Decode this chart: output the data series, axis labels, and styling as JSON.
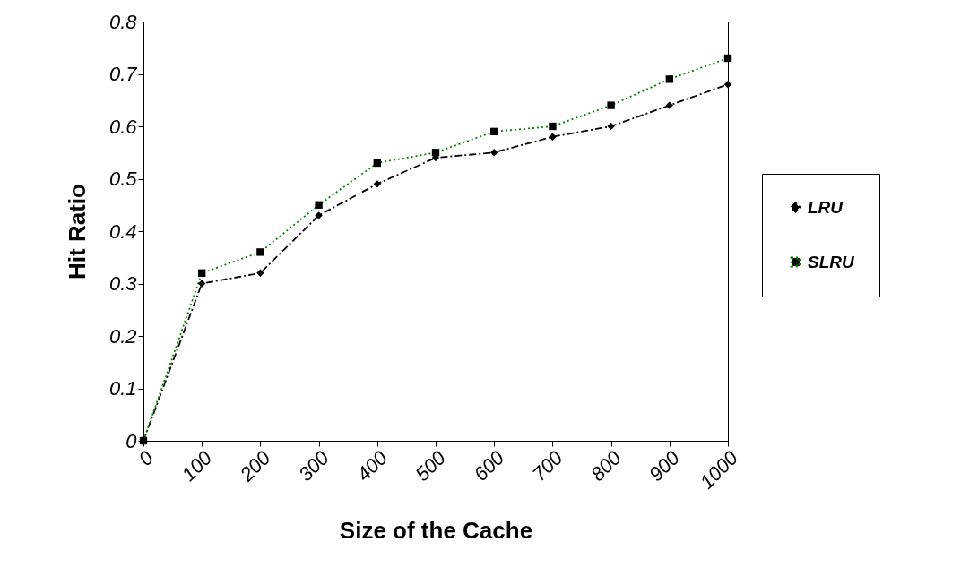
{
  "chart_data": {
    "type": "line",
    "xlabel": "Size of the Cache",
    "ylabel": "Hit Ratio",
    "x": [
      0,
      100,
      200,
      300,
      400,
      500,
      600,
      700,
      800,
      900,
      1000
    ],
    "xlim": [
      0,
      1000
    ],
    "xticks": [
      0,
      100,
      200,
      300,
      400,
      500,
      600,
      700,
      800,
      900,
      1000
    ],
    "ylim": [
      0,
      0.8
    ],
    "yticks": [
      0,
      0.1,
      0.2,
      0.3,
      0.4,
      0.5,
      0.6,
      0.7,
      0.8
    ],
    "grid": false,
    "legend": "right",
    "series": [
      {
        "name": "LRU",
        "color": "#000000",
        "marker": "diamond",
        "line_style": "dashed",
        "values": [
          0,
          0.3,
          0.32,
          0.43,
          0.49,
          0.54,
          0.55,
          0.58,
          0.6,
          0.64,
          0.68
        ]
      },
      {
        "name": "SLRU",
        "color": "#008000",
        "marker": "square",
        "line_style": "dotted",
        "values": [
          0,
          0.32,
          0.36,
          0.45,
          0.53,
          0.55,
          0.59,
          0.6,
          0.64,
          0.69,
          0.73
        ]
      }
    ]
  }
}
